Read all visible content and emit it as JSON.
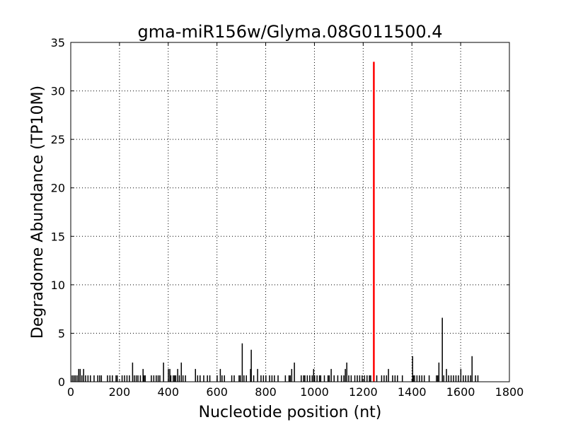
{
  "chart_data": {
    "type": "bar",
    "title": "gma-miR156w/Glyma.08G011500.4",
    "xlabel": "Nucleotide position (nt)",
    "ylabel": "Degradome Abundance (TP10M)",
    "xlim": [
      0,
      1800
    ],
    "ylim": [
      0,
      35
    ],
    "xticks": [
      0,
      200,
      400,
      600,
      800,
      1000,
      1200,
      1400,
      1600,
      1800
    ],
    "yticks": [
      0,
      5,
      10,
      15,
      20,
      25,
      30,
      35
    ],
    "grid": true,
    "colors": {
      "bars": "#000000",
      "highlight": "#ff0000"
    },
    "highlight": {
      "x": 1243,
      "value": 33
    },
    "bars": [
      [
        32,
        1.32
      ],
      [
        38,
        1.32
      ],
      [
        52,
        1.32
      ],
      [
        253,
        1.98
      ],
      [
        296,
        1.32
      ],
      [
        380,
        1.98
      ],
      [
        400,
        1.32
      ],
      [
        406,
        1.32
      ],
      [
        438,
        1.32
      ],
      [
        453,
        1.98
      ],
      [
        511,
        1.32
      ],
      [
        613,
        1.32
      ],
      [
        703,
        3.96
      ],
      [
        737,
        1.32
      ],
      [
        740,
        3.3
      ],
      [
        766,
        1.32
      ],
      [
        906,
        1.32
      ],
      [
        917,
        1.98
      ],
      [
        996,
        1.32
      ],
      [
        1068,
        1.32
      ],
      [
        1126,
        1.32
      ],
      [
        1132,
        1.98
      ],
      [
        1303,
        1.32
      ],
      [
        1402,
        2.64
      ],
      [
        1510,
        1.98
      ],
      [
        1524,
        6.6
      ],
      [
        1541,
        1.32
      ],
      [
        1600,
        1.32
      ],
      [
        1646,
        2.64
      ],
      [
        5,
        0.66
      ],
      [
        12,
        0.66
      ],
      [
        18,
        0.66
      ],
      [
        25,
        0.66
      ],
      [
        45,
        0.66
      ],
      [
        60,
        0.66
      ],
      [
        70,
        0.66
      ],
      [
        80,
        0.66
      ],
      [
        95,
        0.66
      ],
      [
        110,
        0.66
      ],
      [
        118,
        0.66
      ],
      [
        125,
        0.66
      ],
      [
        150,
        0.66
      ],
      [
        160,
        0.66
      ],
      [
        170,
        0.66
      ],
      [
        185,
        0.66
      ],
      [
        190,
        0.66
      ],
      [
        210,
        0.66
      ],
      [
        220,
        0.66
      ],
      [
        230,
        0.66
      ],
      [
        240,
        0.66
      ],
      [
        260,
        0.66
      ],
      [
        268,
        0.66
      ],
      [
        275,
        0.66
      ],
      [
        285,
        0.66
      ],
      [
        300,
        0.66
      ],
      [
        305,
        0.66
      ],
      [
        330,
        0.66
      ],
      [
        340,
        0.66
      ],
      [
        350,
        0.66
      ],
      [
        358,
        0.66
      ],
      [
        365,
        0.66
      ],
      [
        410,
        0.66
      ],
      [
        420,
        0.66
      ],
      [
        425,
        0.66
      ],
      [
        430,
        0.66
      ],
      [
        445,
        0.66
      ],
      [
        460,
        0.66
      ],
      [
        470,
        0.66
      ],
      [
        520,
        0.66
      ],
      [
        530,
        0.66
      ],
      [
        545,
        0.66
      ],
      [
        560,
        0.66
      ],
      [
        570,
        0.66
      ],
      [
        600,
        0.66
      ],
      [
        620,
        0.66
      ],
      [
        630,
        0.66
      ],
      [
        660,
        0.66
      ],
      [
        670,
        0.66
      ],
      [
        690,
        0.66
      ],
      [
        695,
        0.66
      ],
      [
        710,
        0.66
      ],
      [
        720,
        0.66
      ],
      [
        750,
        0.66
      ],
      [
        780,
        0.66
      ],
      [
        790,
        0.66
      ],
      [
        800,
        0.66
      ],
      [
        815,
        0.66
      ],
      [
        825,
        0.66
      ],
      [
        835,
        0.66
      ],
      [
        850,
        0.66
      ],
      [
        880,
        0.66
      ],
      [
        895,
        0.66
      ],
      [
        900,
        0.66
      ],
      [
        945,
        0.66
      ],
      [
        955,
        0.66
      ],
      [
        960,
        0.66
      ],
      [
        970,
        0.66
      ],
      [
        980,
        0.66
      ],
      [
        990,
        0.66
      ],
      [
        1000,
        0.66
      ],
      [
        1010,
        0.66
      ],
      [
        1020,
        0.66
      ],
      [
        1025,
        0.66
      ],
      [
        1040,
        0.66
      ],
      [
        1055,
        0.66
      ],
      [
        1060,
        0.66
      ],
      [
        1080,
        0.66
      ],
      [
        1095,
        0.66
      ],
      [
        1110,
        0.66
      ],
      [
        1120,
        0.66
      ],
      [
        1140,
        0.66
      ],
      [
        1150,
        0.66
      ],
      [
        1165,
        0.66
      ],
      [
        1175,
        0.66
      ],
      [
        1185,
        0.66
      ],
      [
        1195,
        0.66
      ],
      [
        1205,
        0.66
      ],
      [
        1215,
        0.66
      ],
      [
        1225,
        0.66
      ],
      [
        1230,
        0.66
      ],
      [
        1255,
        0.66
      ],
      [
        1275,
        0.66
      ],
      [
        1285,
        0.66
      ],
      [
        1295,
        0.66
      ],
      [
        1320,
        0.66
      ],
      [
        1330,
        0.66
      ],
      [
        1340,
        0.66
      ],
      [
        1360,
        0.66
      ],
      [
        1405,
        0.66
      ],
      [
        1410,
        0.66
      ],
      [
        1420,
        0.66
      ],
      [
        1430,
        0.66
      ],
      [
        1440,
        0.66
      ],
      [
        1450,
        0.66
      ],
      [
        1470,
        0.66
      ],
      [
        1500,
        0.66
      ],
      [
        1505,
        0.66
      ],
      [
        1530,
        0.66
      ],
      [
        1550,
        0.66
      ],
      [
        1560,
        0.66
      ],
      [
        1570,
        0.66
      ],
      [
        1580,
        0.66
      ],
      [
        1590,
        0.66
      ],
      [
        1610,
        0.66
      ],
      [
        1620,
        0.66
      ],
      [
        1630,
        0.66
      ],
      [
        1640,
        0.66
      ],
      [
        1660,
        0.66
      ],
      [
        1670,
        0.66
      ]
    ]
  }
}
